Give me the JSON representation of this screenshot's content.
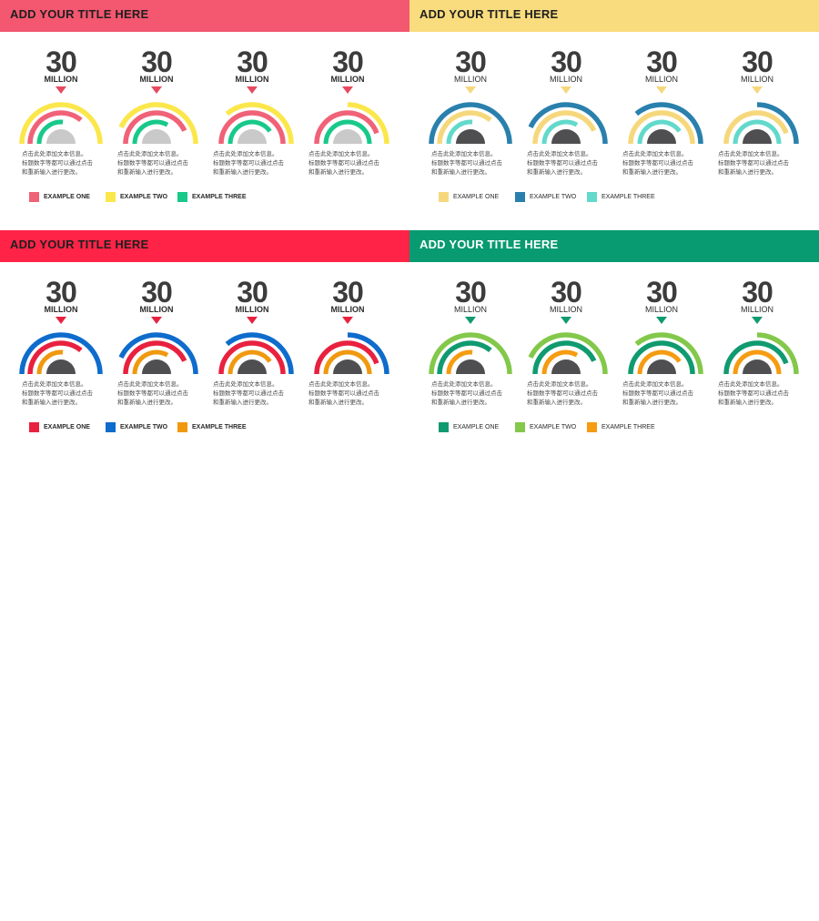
{
  "panels": [
    {
      "title": "ADD YOUR TITLE HERE",
      "header_color": "#f45770",
      "arrow_color": "#e74a60",
      "c1": "#f06277",
      "c2": "#fbe74b",
      "c3": "#18c98a",
      "core": "#c9c9c9",
      "bold_legend": true,
      "gauges": [
        {
          "value": "30",
          "unit": "MILLION",
          "desc": [
            "点击此处添加文本信息。",
            "标题数字等都可以通过点击",
            "和重新输入进行更改。"
          ]
        },
        {
          "value": "30",
          "unit": "MILLION",
          "desc": [
            "点击此处添加文本信息。",
            "标题数字等都可以通过点击",
            "和重新输入进行更改。"
          ]
        },
        {
          "value": "30",
          "unit": "MILLION",
          "desc": [
            "点击此处添加文本信息。",
            "标题数字等都可以通过点击",
            "和重新输入进行更改。"
          ]
        },
        {
          "value": "30",
          "unit": "MILLION",
          "desc": [
            "点击此处添加文本信息。",
            "标题数字等都可以通过点击",
            "和重新输入进行更改。"
          ]
        }
      ],
      "legend": [
        "EXAMPLE ONE",
        "EXAMPLE TWO",
        "EXAMPLE THREE"
      ]
    },
    {
      "title": "ADD YOUR TITLE HERE",
      "header_color": "#f9dc7e",
      "arrow_color": "#f6d87c",
      "c1": "#f6d87c",
      "c2": "#2a80ad",
      "c3": "#62d9cb",
      "core": "#4f4f51",
      "bold_legend": false,
      "gauges": [
        {
          "value": "30",
          "unit": "MILLION",
          "desc": [
            "点击此处添加文本信息。",
            "标题数字等都可以通过点击",
            "和重新输入进行更改。"
          ]
        },
        {
          "value": "30",
          "unit": "MILLION",
          "desc": [
            "点击此处添加文本信息。",
            "标题数字等都可以通过点击",
            "和重新输入进行更改。"
          ]
        },
        {
          "value": "30",
          "unit": "MILLION",
          "desc": [
            "点击此处添加文本信息。",
            "标题数字等都可以通过点击",
            "和重新输入进行更改。"
          ]
        },
        {
          "value": "30",
          "unit": "MILLION",
          "desc": [
            "点击此处添加文本信息。",
            "标题数字等都可以通过点击",
            "和重新输入进行更改。"
          ]
        }
      ],
      "legend": [
        "EXAMPLE ONE",
        "EXAMPLE TWO",
        "EXAMPLE THREE"
      ]
    },
    {
      "title": "ADD YOUR TITLE HERE",
      "header_color": "#ff2447",
      "arrow_color": "#e8213f",
      "c1": "#e8213f",
      "c2": "#0e6ccc",
      "c3": "#f0990f",
      "core": "#4f4f51",
      "bold_legend": true,
      "gauges": [
        {
          "value": "30",
          "unit": "MILLION",
          "desc": [
            "点击此处添加文本信息。",
            "标题数字等都可以通过点击",
            "和重新输入进行更改。"
          ]
        },
        {
          "value": "30",
          "unit": "MILLION",
          "desc": [
            "点击此处添加文本信息。",
            "标题数字等都可以通过点击",
            "和重新输入进行更改。"
          ]
        },
        {
          "value": "30",
          "unit": "MILLION",
          "desc": [
            "点击此处添加文本信息。",
            "标题数字等都可以通过点击",
            "和重新输入进行更改。"
          ]
        },
        {
          "value": "30",
          "unit": "MILLION",
          "desc": [
            "点击此处添加文本信息。",
            "标题数字等都可以通过点击",
            "和重新输入进行更改。"
          ]
        }
      ],
      "legend": [
        "EXAMPLE ONE",
        "EXAMPLE TWO",
        "EXAMPLE THREE"
      ]
    },
    {
      "title": "ADD YOUR TITLE HERE",
      "header_color": "#089a71",
      "arrow_color": "#109a70",
      "c1": "#109a70",
      "c2": "#83c84a",
      "c3": "#f59c11",
      "core": "#4f4f51",
      "bold_legend": false,
      "gauges": [
        {
          "value": "30",
          "unit": "MILLION",
          "desc": [
            "点击此处添加文本信息。",
            "标题数字等都可以通过点击",
            "和重新输入进行更改。"
          ]
        },
        {
          "value": "30",
          "unit": "MILLION",
          "desc": [
            "点击此处添加文本信息。",
            "标题数字等都可以通过点击",
            "和重新输入进行更改。"
          ]
        },
        {
          "value": "30",
          "unit": "MILLION",
          "desc": [
            "点击此处添加文本信息。",
            "标题数字等都可以通过点击",
            "和重新输入进行更改。"
          ]
        },
        {
          "value": "30",
          "unit": "MILLION",
          "desc": [
            "点击此处添加文本信息。",
            "标题数字等都可以通过点击",
            "和重新输入进行更改。"
          ]
        }
      ],
      "legend": [
        "EXAMPLE ONE",
        "EXAMPLE TWO",
        "EXAMPLE THREE"
      ]
    }
  ]
}
